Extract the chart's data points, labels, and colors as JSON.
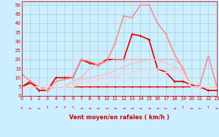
{
  "background_color": "#cceeff",
  "grid_color": "#aacccc",
  "text_color": "#cc0000",
  "xlabel": "Vent moyen/en rafales ( km/h )",
  "xlim": [
    0,
    23
  ],
  "ylim": [
    0,
    52
  ],
  "yticks": [
    0,
    5,
    10,
    15,
    20,
    25,
    30,
    35,
    40,
    45,
    50
  ],
  "xticks": [
    0,
    1,
    2,
    3,
    4,
    5,
    6,
    7,
    8,
    9,
    10,
    11,
    12,
    13,
    14,
    15,
    16,
    17,
    18,
    19,
    20,
    21,
    22,
    23
  ],
  "series": [
    {
      "x": [
        0,
        1,
        2,
        3,
        4,
        5,
        6,
        7,
        8,
        9,
        10,
        11,
        12,
        13,
        14,
        15,
        16,
        17,
        18,
        19,
        20,
        21,
        22,
        23
      ],
      "y": [
        5,
        7,
        5,
        5,
        5,
        5,
        5,
        5,
        5,
        5,
        5,
        5,
        5,
        5,
        5,
        5,
        5,
        5,
        5,
        5,
        5,
        5,
        5,
        5
      ],
      "color": "#ff0000",
      "lw": 1.0,
      "ms": 2.0
    },
    {
      "x": [
        0,
        1,
        2,
        3,
        4,
        5,
        6,
        7,
        8,
        9,
        10,
        11,
        12,
        13,
        14,
        15,
        16,
        17,
        18,
        19,
        20,
        21,
        22,
        23
      ],
      "y": [
        5,
        8,
        3,
        3,
        10,
        10,
        10,
        20,
        18,
        17,
        20,
        20,
        20,
        34,
        33,
        31,
        15,
        13,
        8,
        8,
        6,
        5,
        3,
        3
      ],
      "color": "#dd0000",
      "lw": 1.3,
      "ms": 2.5
    },
    {
      "x": [
        0,
        1,
        2,
        3,
        4,
        5,
        6,
        7,
        8,
        9,
        10,
        11,
        12,
        13,
        14,
        15,
        16,
        17,
        18,
        19,
        20,
        21,
        22,
        23
      ],
      "y": [
        12,
        8,
        5,
        3,
        8,
        9,
        10,
        20,
        19,
        17,
        19,
        29,
        44,
        43,
        50,
        50,
        40,
        34,
        23,
        15,
        5,
        6,
        22,
        5
      ],
      "color": "#ff8888",
      "lw": 1.2,
      "ms": 2.0
    },
    {
      "x": [
        0,
        1,
        2,
        3,
        4,
        5,
        6,
        7,
        8,
        9,
        10,
        11,
        12,
        13,
        14,
        15,
        16,
        17,
        18,
        19,
        20,
        21,
        22,
        23
      ],
      "y": [
        5,
        5,
        5,
        3,
        5,
        5,
        8,
        10,
        15,
        18,
        19,
        20,
        20,
        20,
        20,
        20,
        20,
        20,
        20,
        16,
        5,
        5,
        5,
        5
      ],
      "color": "#ffaaaa",
      "lw": 0.9,
      "ms": 1.5
    },
    {
      "x": [
        0,
        1,
        2,
        3,
        4,
        5,
        6,
        7,
        8,
        9,
        10,
        11,
        12,
        13,
        14,
        15,
        16,
        17,
        18,
        19,
        20,
        21,
        22,
        23
      ],
      "y": [
        5,
        5,
        5,
        5,
        5,
        5,
        5,
        9,
        10,
        11,
        12,
        14,
        16,
        18,
        19,
        20,
        20,
        18,
        16,
        14,
        5,
        5,
        5,
        5
      ],
      "color": "#ffbbbb",
      "lw": 0.9,
      "ms": 1.5
    },
    {
      "x": [
        0,
        1,
        2,
        3,
        4,
        5,
        6,
        7,
        8,
        9,
        10,
        11,
        12,
        13,
        14,
        15,
        16,
        17,
        18,
        19,
        20,
        21,
        22,
        23
      ],
      "y": [
        5,
        5,
        5,
        5,
        5,
        5,
        5,
        7,
        8,
        9,
        10,
        11,
        12,
        13,
        14,
        15,
        15,
        14,
        14,
        13,
        5,
        5,
        5,
        5
      ],
      "color": "#ffcccc",
      "lw": 0.8,
      "ms": 1.5
    },
    {
      "x": [
        0,
        1,
        2,
        3,
        4,
        5,
        6,
        7,
        8,
        9,
        10,
        11,
        12,
        13,
        14,
        15,
        16,
        17,
        18,
        19,
        20,
        21,
        22,
        23
      ],
      "y": [
        5,
        5,
        5,
        5,
        5,
        5,
        5,
        6,
        7,
        7,
        8,
        9,
        10,
        11,
        12,
        12,
        13,
        13,
        12,
        11,
        5,
        5,
        5,
        5
      ],
      "color": "#ffdddd",
      "lw": 0.8,
      "ms": 1.5
    }
  ],
  "wind_symbols": [
    "↙",
    "←",
    "←",
    "↑",
    "↗",
    "↗",
    "↖",
    "→",
    "→",
    "→",
    "→",
    "→",
    "→",
    "→",
    "→",
    "→",
    "→",
    "←",
    "→",
    "↑",
    "←",
    "←",
    "↑",
    "←"
  ]
}
